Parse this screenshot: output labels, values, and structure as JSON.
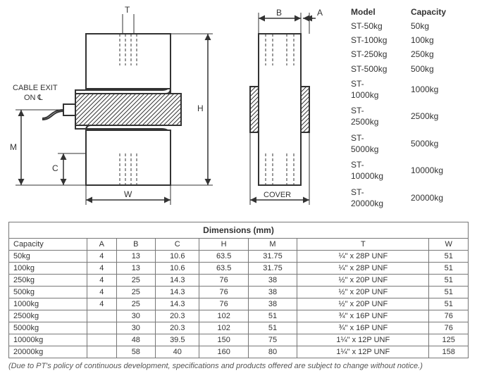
{
  "diagram": {
    "labels": {
      "T": "T",
      "B": "B",
      "A": "A",
      "H": "H",
      "M": "M",
      "C": "C",
      "W": "W",
      "cover": "COVER",
      "cable_exit_l1": "CABLE EXIT",
      "cable_exit_l2": "ON ℄"
    },
    "stroke": "#333333",
    "hatch": "#333333",
    "dash": "4,3"
  },
  "model_list": {
    "headers": [
      "Model",
      "Capacity"
    ],
    "rows": [
      [
        "ST-50kg",
        "50kg"
      ],
      [
        "ST-100kg",
        "100kg"
      ],
      [
        "ST-250kg",
        "250kg"
      ],
      [
        "ST-500kg",
        "500kg"
      ],
      [
        "ST-1000kg",
        "1000kg"
      ],
      [
        "ST-2500kg",
        "2500kg"
      ],
      [
        "ST-5000kg",
        "5000kg"
      ],
      [
        "ST-10000kg",
        "10000kg"
      ],
      [
        "ST-20000kg",
        "20000kg"
      ]
    ]
  },
  "dim_table": {
    "title": "Dimensions (mm)",
    "headers": [
      "Capacity",
      "A",
      "B",
      "C",
      "H",
      "M",
      "T",
      "W"
    ],
    "aligns": [
      "left",
      "center",
      "center",
      "center",
      "center",
      "center",
      "center",
      "center"
    ],
    "rows": [
      [
        "50kg",
        "4",
        "13",
        "10.6",
        "63.5",
        "31.75",
        "¼\" x 28P UNF",
        "51"
      ],
      [
        "100kg",
        "4",
        "13",
        "10.6",
        "63.5",
        "31.75",
        "¼\" x 28P UNF",
        "51"
      ],
      [
        "250kg",
        "4",
        "25",
        "14.3",
        "76",
        "38",
        "½\" x 20P UNF",
        "51"
      ],
      [
        "500kg",
        "4",
        "25",
        "14.3",
        "76",
        "38",
        "½\" x 20P UNF",
        "51"
      ],
      [
        "1000kg",
        "4",
        "25",
        "14.3",
        "76",
        "38",
        "½\" x 20P UNF",
        "51"
      ],
      [
        "2500kg",
        "",
        "30",
        "20.3",
        "102",
        "51",
        "¾\" x 16P UNF",
        "76"
      ],
      [
        "5000kg",
        "",
        "30",
        "20.3",
        "102",
        "51",
        "¾\" x 16P UNF",
        "76"
      ],
      [
        "10000kg",
        "",
        "48",
        "39.5",
        "150",
        "75",
        "1¼\" x 12P UNF",
        "125"
      ],
      [
        "20000kg",
        "",
        "58",
        "40",
        "160",
        "80",
        "1¼\" x 12P UNF",
        "158"
      ]
    ]
  },
  "footnote": "(Due to PT's policy of continuous development, specifications and products offered are subject to change without notice.)"
}
